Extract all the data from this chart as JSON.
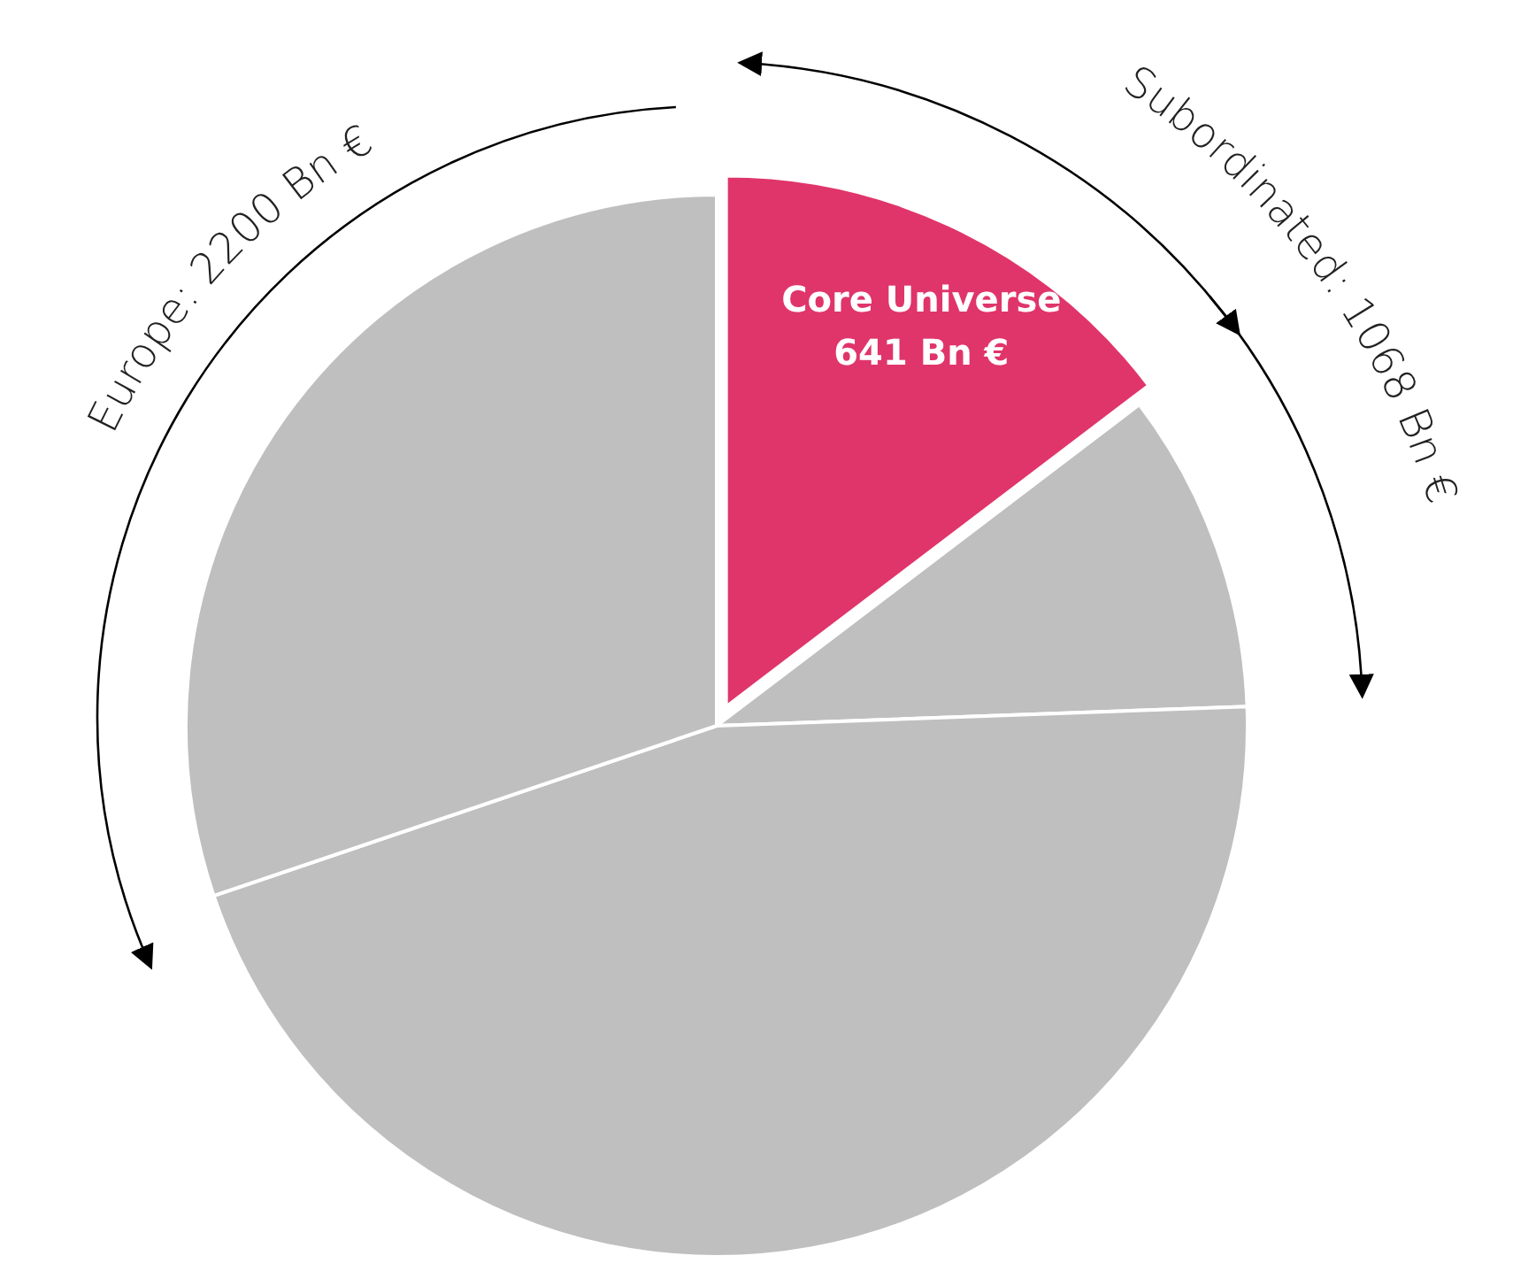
{
  "chart_data": {
    "type": "pie",
    "categories": [
      "Core Universe",
      null,
      null,
      null
    ],
    "values": [
      641,
      427,
      1985,
      1320
    ],
    "colors": [
      "#e0356a",
      "#bfbfbf",
      "#bfbfbf",
      "#bfbfbf"
    ],
    "value_labels": [
      "641 Bn €",
      null,
      null,
      null
    ],
    "annotations": [
      "Europe: 2200 Bn €",
      "Subordinated: 1068 Bn €"
    ],
    "legend": false
  }
}
